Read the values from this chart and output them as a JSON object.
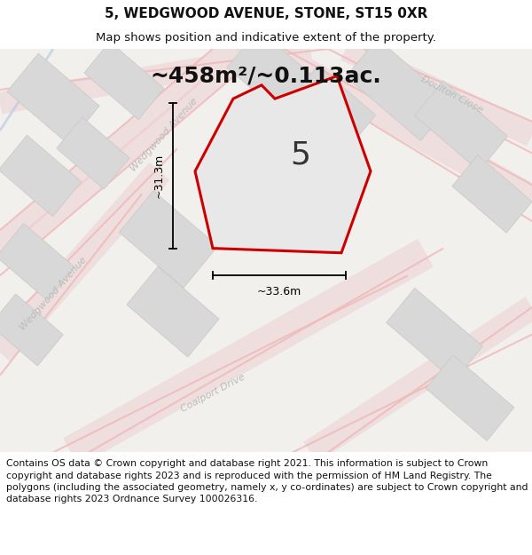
{
  "title": "5, WEDGWOOD AVENUE, STONE, ST15 0XR",
  "subtitle": "Map shows position and indicative extent of the property.",
  "area_text": "~458m²/~0.113ac.",
  "property_number": "5",
  "dim_width": "~33.6m",
  "dim_height": "~31.3m",
  "footer": "Contains OS data © Crown copyright and database right 2021. This information is subject to Crown copyright and database rights 2023 and is reproduced with the permission of HM Land Registry. The polygons (including the associated geometry, namely x, y co-ordinates) are subject to Crown copyright and database rights 2023 Ordnance Survey 100026316.",
  "bg_color": "#f2f0ed",
  "map_bg": "#f2f0ed",
  "block_color": "#d8d8d8",
  "block_edge": "#c8c8c8",
  "road_pink": "#f0b8b8",
  "road_pink2": "#e8a8a8",
  "road_blue": "#b8cce4",
  "property_fill": "#e8e8e8",
  "property_edge": "#cc0000",
  "label_color": "#bbbbbb",
  "title_fontsize": 11,
  "subtitle_fontsize": 9.5,
  "area_fontsize": 18,
  "number_fontsize": 26,
  "dim_fontsize": 9,
  "label_fontsize": 8,
  "footer_fontsize": 7.8
}
